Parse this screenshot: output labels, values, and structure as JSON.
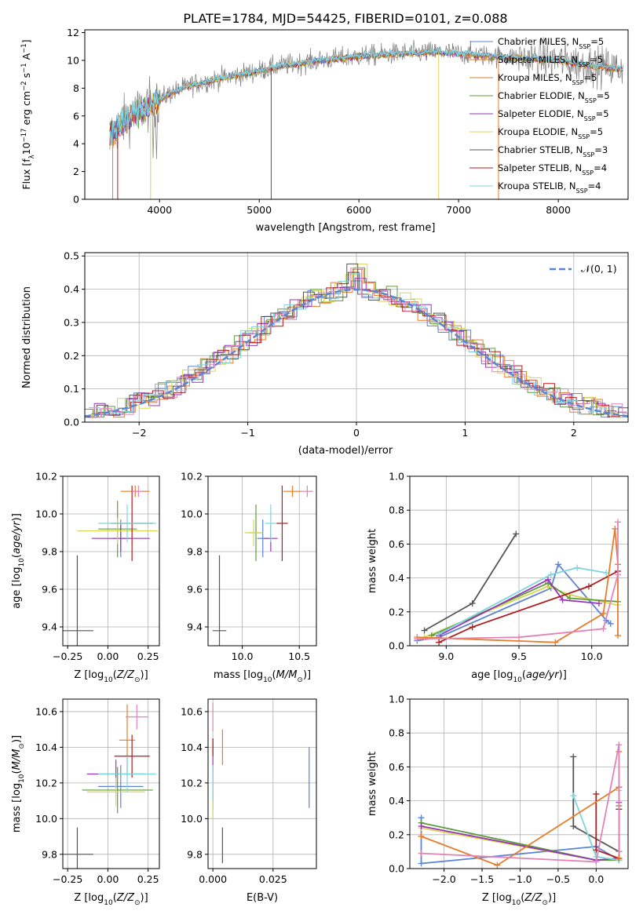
{
  "figure_title": "PLATE=1784, MJD=54425, FIBERID=0101, z=0.088",
  "colors": {
    "s1": "#5b84d6",
    "s2": "#e77c2a",
    "s3": "#d0802e",
    "s4": "#5f9a3f",
    "s5": "#9637b7",
    "s6": "#d9d655",
    "s7": "#555555",
    "s8": "#b01c1c",
    "s9": "#7fd4dd",
    "pink": "#e283b7",
    "ref": "#5b84d6"
  },
  "legend": [
    {
      "label": "Chabrier MILES, N",
      "sub": "SSP",
      "tail": "=5",
      "color": "#5b84d6"
    },
    {
      "label": "Salpeter MILES, N",
      "sub": "SSP",
      "tail": "=5",
      "color": "#e77c2a"
    },
    {
      "label": "Kroupa MILES, N",
      "sub": "SSP",
      "tail": "=5",
      "color": "#d0802e"
    },
    {
      "label": "Chabrier ELODIE, N",
      "sub": "SSP",
      "tail": "=5",
      "color": "#5f9a3f"
    },
    {
      "label": "Salpeter ELODIE, N",
      "sub": "SSP",
      "tail": "=5",
      "color": "#9637b7"
    },
    {
      "label": "Kroupa ELODIE, N",
      "sub": "SSP",
      "tail": "=5",
      "color": "#d9d655"
    },
    {
      "label": "Chabrier STELIB, N",
      "sub": "SSP",
      "tail": "=3",
      "color": "#555555"
    },
    {
      "label": "Salpeter STELIB, N",
      "sub": "SSP",
      "tail": "=4",
      "color": "#b01c1c"
    },
    {
      "label": "Kroupa STELIB, N",
      "sub": "SSP",
      "tail": "=4",
      "color": "#7fd4dd"
    }
  ],
  "chart_data": [
    {
      "type": "line",
      "panel": "spectrum",
      "xlabel": "wavelength [Angstrom, rest frame]",
      "ylabel": "Flux [f_λ 10^-17 erg cm^-2 s^-1 A^-1]",
      "xlim": [
        3250,
        8700
      ],
      "ylim": [
        0,
        12.2
      ],
      "xticks": [
        4000,
        5000,
        6000,
        7000,
        8000
      ],
      "yticks": [
        0,
        2,
        4,
        6,
        8,
        10,
        12
      ],
      "grid": false,
      "legend_position": "top-right",
      "continuum": {
        "x": [
          3500,
          3700,
          3900,
          4100,
          4300,
          4600,
          4900,
          5200,
          5600,
          6000,
          6400,
          6800,
          7200,
          7600,
          8000,
          8400,
          8650
        ],
        "y": [
          4.6,
          6.0,
          6.8,
          7.6,
          8.2,
          8.7,
          9.1,
          9.6,
          10.0,
          10.3,
          10.5,
          10.6,
          10.4,
          10.2,
          10.0,
          9.6,
          9.4
        ]
      },
      "spikes": [
        {
          "x": 3530,
          "y": 0.0
        },
        {
          "x": 3580,
          "y": 0.0
        },
        {
          "x": 3910,
          "y": 0.0
        },
        {
          "x": 5120,
          "y": 0.0
        },
        {
          "x": 6800,
          "y": 0.0
        },
        {
          "x": 7400,
          "y": 0.0
        }
      ]
    },
    {
      "type": "histogram",
      "panel": "residuals",
      "xlabel": "(data-model)/error",
      "ylabel": "Normed distribution",
      "xlim": [
        -2.5,
        2.5
      ],
      "ylim": [
        0,
        0.51
      ],
      "xticks": [
        -2,
        -1,
        0,
        1,
        2
      ],
      "yticks": [
        0.0,
        0.1,
        0.2,
        0.3,
        0.4,
        0.5
      ],
      "grid": true,
      "legend": "N(0,1)",
      "legend_position": "top-right",
      "reference": {
        "name": "N(0,1)",
        "mean": 0,
        "sigma": 1
      },
      "bin_width": 0.1
    },
    {
      "type": "scatter",
      "panel": "age_vs_Z",
      "xlabel": "Z [log10(Z/Z_sun)]",
      "ylabel": "age [log10(age/yr)]",
      "xlim": [
        -0.28,
        0.32
      ],
      "ylim": [
        9.3,
        10.2
      ],
      "xticks": [
        -0.25,
        0.0,
        0.25
      ],
      "yticks": [
        9.4,
        9.6,
        9.8,
        10.0,
        10.2
      ],
      "grid": true,
      "points": [
        {
          "x": 0.08,
          "y": 9.87,
          "xerr": 0.05,
          "yerr": 0.1,
          "color": "#5b84d6"
        },
        {
          "x": 0.17,
          "y": 10.12,
          "xerr": 0.09,
          "yerr": 0.03,
          "color": "#e77c2a"
        },
        {
          "x": 0.06,
          "y": 9.92,
          "xerr": 0.12,
          "yerr": 0.15,
          "color": "#5f9a3f"
        },
        {
          "x": 0.08,
          "y": 9.87,
          "xerr": 0.18,
          "yerr": 0.07,
          "color": "#9637b7"
        },
        {
          "x": 0.06,
          "y": 9.91,
          "xerr": 0.25,
          "yerr": 0.07,
          "color": "#d9d655"
        },
        {
          "x": -0.19,
          "y": 9.38,
          "xerr": 0.1,
          "yerr": 0.4,
          "color": "#555555"
        },
        {
          "x": 0.15,
          "y": 9.95,
          "xerr": 0.13,
          "yerr": 0.2,
          "color": "#b01c1c"
        },
        {
          "x": 0.12,
          "y": 9.95,
          "xerr": 0.18,
          "yerr": 0.1,
          "color": "#7fd4dd"
        },
        {
          "x": 0.19,
          "y": 10.12,
          "xerr": 0.04,
          "yerr": 0.03,
          "color": "#e283b7"
        }
      ]
    },
    {
      "type": "scatter",
      "panel": "age_vs_mass",
      "xlabel": "mass [log10(M/M_sun)]",
      "ylabel": "",
      "xlim": [
        9.7,
        10.65
      ],
      "ylim": [
        9.3,
        10.2
      ],
      "xticks": [
        10.0,
        10.5
      ],
      "yticks": [
        9.4,
        9.6,
        9.8,
        10.0,
        10.2
      ],
      "grid": true,
      "points": [
        {
          "x": 10.18,
          "y": 9.87,
          "xerr": 0.05,
          "yerr": 0.1,
          "color": "#5b84d6"
        },
        {
          "x": 10.44,
          "y": 10.12,
          "xerr": 0.08,
          "yerr": 0.03,
          "color": "#e77c2a"
        },
        {
          "x": 10.12,
          "y": 9.9,
          "xerr": 0.06,
          "yerr": 0.15,
          "color": "#5f9a3f"
        },
        {
          "x": 10.25,
          "y": 9.87,
          "xerr": 0.06,
          "yerr": 0.07,
          "color": "#9637b7"
        },
        {
          "x": 10.1,
          "y": 9.9,
          "xerr": 0.08,
          "yerr": 0.07,
          "color": "#d9d655"
        },
        {
          "x": 9.8,
          "y": 9.38,
          "xerr": 0.06,
          "yerr": 0.4,
          "color": "#555555"
        },
        {
          "x": 10.35,
          "y": 9.95,
          "xerr": 0.05,
          "yerr": 0.2,
          "color": "#b01c1c"
        },
        {
          "x": 10.25,
          "y": 9.95,
          "xerr": 0.05,
          "yerr": 0.1,
          "color": "#7fd4dd"
        },
        {
          "x": 10.57,
          "y": 10.12,
          "xerr": 0.05,
          "yerr": 0.03,
          "color": "#e283b7"
        }
      ]
    },
    {
      "type": "line",
      "panel": "weight_vs_age",
      "xlabel": "age [log10(age/yr)]",
      "ylabel": "mass weight",
      "xlim": [
        8.75,
        10.25
      ],
      "ylim": [
        0,
        1
      ],
      "xticks": [
        9.0,
        9.5,
        10.0
      ],
      "yticks": [
        0.0,
        0.2,
        0.4,
        0.6,
        0.8,
        1.0
      ],
      "grid": true,
      "series": [
        {
          "color": "#555555",
          "x": [
            8.85,
            9.18,
            9.48
          ],
          "y": [
            0.09,
            0.25,
            0.66
          ]
        },
        {
          "color": "#5b84d6",
          "x": [
            8.8,
            8.95,
            9.72,
            9.77,
            10.1,
            10.13
          ],
          "y": [
            0.03,
            0.05,
            0.34,
            0.48,
            0.15,
            0.13
          ]
        },
        {
          "color": "#d9d655",
          "x": [
            8.85,
            9.7,
            9.85,
            10.18
          ],
          "y": [
            0.05,
            0.35,
            0.3,
            0.24
          ]
        },
        {
          "color": "#5f9a3f",
          "x": [
            8.9,
            9.7,
            9.85,
            10.18
          ],
          "y": [
            0.06,
            0.37,
            0.28,
            0.26
          ]
        },
        {
          "color": "#9637b7",
          "x": [
            8.95,
            9.7,
            9.8,
            10.05
          ],
          "y": [
            0.06,
            0.39,
            0.27,
            0.25
          ]
        },
        {
          "color": "#7fd4dd",
          "x": [
            8.95,
            9.72,
            9.9,
            10.1
          ],
          "y": [
            0.07,
            0.42,
            0.46,
            0.43
          ]
        },
        {
          "color": "#b01c1c",
          "x": [
            8.95,
            9.18,
            9.98,
            10.18
          ],
          "y": [
            0.02,
            0.11,
            0.35,
            0.44
          ]
        },
        {
          "color": "#e77c2a",
          "x": [
            8.8,
            9.75,
            10.08,
            10.16,
            10.18,
            10.18
          ],
          "y": [
            0.05,
            0.02,
            0.19,
            0.69,
            0.48,
            0.06
          ]
        },
        {
          "color": "#e283b7",
          "x": [
            8.8,
            9.5,
            10.08,
            10.18,
            10.18
          ],
          "y": [
            0.04,
            0.05,
            0.1,
            0.42,
            0.73
          ]
        }
      ]
    },
    {
      "type": "scatter",
      "panel": "mass_vs_Z",
      "xlabel": "Z [log10(Z/Z_sun)]",
      "ylabel": "mass [log10(M/M_sun)]",
      "xlim": [
        -0.28,
        0.32
      ],
      "ylim": [
        9.72,
        10.67
      ],
      "xticks": [
        -0.25,
        0.0,
        0.25
      ],
      "yticks": [
        9.8,
        10.0,
        10.2,
        10.4,
        10.6
      ],
      "grid": true,
      "points": [
        {
          "x": 0.08,
          "y": 10.18,
          "xerr": 0.14,
          "yerr": 0.12,
          "color": "#5b84d6"
        },
        {
          "x": 0.12,
          "y": 10.44,
          "xerr": 0.05,
          "yerr": 0.2,
          "color": "#e77c2a"
        },
        {
          "x": 0.06,
          "y": 10.16,
          "xerr": 0.22,
          "yerr": 0.13,
          "color": "#5f9a3f"
        },
        {
          "x": 0.05,
          "y": 10.25,
          "xerr": 0.18,
          "yerr": 0.08,
          "color": "#9637b7"
        },
        {
          "x": 0.05,
          "y": 10.15,
          "xerr": 0.18,
          "yerr": 0.08,
          "color": "#d9d655"
        },
        {
          "x": -0.19,
          "y": 9.8,
          "xerr": 0.1,
          "yerr": 0.15,
          "color": "#555555"
        },
        {
          "x": 0.15,
          "y": 10.35,
          "xerr": 0.11,
          "yerr": 0.12,
          "color": "#b01c1c"
        },
        {
          "x": 0.12,
          "y": 10.25,
          "xerr": 0.18,
          "yerr": 0.1,
          "color": "#7fd4dd"
        },
        {
          "x": 0.18,
          "y": 10.57,
          "xerr": 0.07,
          "yerr": 0.07,
          "color": "#e283b7"
        }
      ]
    },
    {
      "type": "scatter",
      "panel": "mass_vs_EBV",
      "xlabel": "E(B-V)",
      "ylabel": "",
      "xlim": [
        -0.002,
        0.043
      ],
      "ylim": [
        9.72,
        10.67
      ],
      "xticks": [
        0.0,
        0.025
      ],
      "yticks": [
        9.8,
        10.0,
        10.2,
        10.4,
        10.6
      ],
      "grid": true,
      "points": [
        {
          "x": 0.04,
          "y": 10.23,
          "xerr": 0,
          "yerr": 0.17,
          "color": "#5b84d6"
        },
        {
          "x": 0.004,
          "y": 10.4,
          "xerr": 0,
          "yerr": 0.1,
          "color": "#e77c2a"
        },
        {
          "x": 0.0,
          "y": 10.15,
          "xerr": 0,
          "yerr": 0.1,
          "color": "#5f9a3f"
        },
        {
          "x": 0.0,
          "y": 10.35,
          "xerr": 0,
          "yerr": 0.1,
          "color": "#9637b7"
        },
        {
          "x": 0.0,
          "y": 10.1,
          "xerr": 0,
          "yerr": 0.1,
          "color": "#d9d655"
        },
        {
          "x": 0.004,
          "y": 9.85,
          "xerr": 0,
          "yerr": 0.1,
          "color": "#555555"
        },
        {
          "x": 0.0,
          "y": 10.4,
          "xerr": 0,
          "yerr": 0.05,
          "color": "#b01c1c"
        },
        {
          "x": 0.0,
          "y": 10.2,
          "xerr": 0,
          "yerr": 0.1,
          "color": "#7fd4dd"
        },
        {
          "x": 0.0,
          "y": 10.57,
          "xerr": 0,
          "yerr": 0.08,
          "color": "#e283b7"
        }
      ]
    },
    {
      "type": "line",
      "panel": "weight_vs_Z",
      "xlabel": "Z [log10(Z/Z_sun)]",
      "ylabel": "mass weight",
      "xlim": [
        -2.45,
        0.42
      ],
      "ylim": [
        0,
        1
      ],
      "xticks": [
        -2.0,
        -1.5,
        -1.0,
        -0.5,
        0.0
      ],
      "yticks": [
        0.0,
        0.2,
        0.4,
        0.6,
        0.8,
        1.0
      ],
      "grid": true,
      "series": [
        {
          "color": "#555555",
          "x": [
            -0.3,
            -0.3,
            0.3,
            0.3
          ],
          "y": [
            0.66,
            0.25,
            0.1,
            0.35
          ]
        },
        {
          "color": "#5b84d6",
          "x": [
            -2.3,
            -2.3,
            0.0,
            0.3,
            0.3,
            0.3
          ],
          "y": [
            0.3,
            0.03,
            0.13,
            0.05,
            0.1,
            0.48
          ]
        },
        {
          "color": "#d9d655",
          "x": [
            -2.3,
            0.0,
            0.3,
            0.3
          ],
          "y": [
            0.24,
            0.05,
            0.06,
            0.35
          ]
        },
        {
          "color": "#5f9a3f",
          "x": [
            -2.3,
            0.0,
            0.3,
            0.3
          ],
          "y": [
            0.27,
            0.05,
            0.05,
            0.37
          ]
        },
        {
          "color": "#9637b7",
          "x": [
            -2.3,
            0.0,
            0.3,
            0.3
          ],
          "y": [
            0.25,
            0.05,
            0.06,
            0.39
          ]
        },
        {
          "color": "#7fd4dd",
          "x": [
            -0.3,
            0.0,
            0.3,
            0.3
          ],
          "y": [
            0.43,
            0.07,
            0.05,
            0.46
          ]
        },
        {
          "color": "#b01c1c",
          "x": [
            0.0,
            0.0,
            0.3,
            0.3
          ],
          "y": [
            0.44,
            0.11,
            0.06,
            0.35
          ]
        },
        {
          "color": "#e77c2a",
          "x": [
            -2.3,
            -1.3,
            0.3,
            0.3,
            0.3
          ],
          "y": [
            0.19,
            0.02,
            0.48,
            0.69,
            0.06
          ]
        },
        {
          "color": "#e283b7",
          "x": [
            -2.3,
            0.0,
            0.3,
            0.3
          ],
          "y": [
            0.09,
            0.04,
            0.73,
            0.1
          ]
        }
      ]
    }
  ]
}
